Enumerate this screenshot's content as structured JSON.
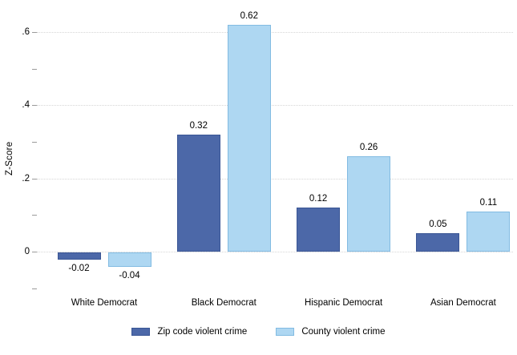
{
  "chart_data": {
    "type": "bar",
    "title": "",
    "xlabel": "",
    "ylabel": "Z-Score",
    "categories": [
      "White Democrat",
      "Black Democrat",
      "Hispanic Democrat",
      "Asian Democrat"
    ],
    "series": [
      {
        "name": "Zip code violent crime",
        "values": [
          -0.02,
          0.32,
          0.12,
          0.05
        ],
        "value_labels": [
          "-0.02",
          "0.32",
          "0.12",
          "0.05"
        ],
        "fill": "#4c68a8",
        "border": "#3a5695"
      },
      {
        "name": "County violent crime",
        "values": [
          -0.04,
          0.62,
          0.26,
          0.11
        ],
        "value_labels": [
          "-0.04",
          "0.62",
          "0.26",
          "0.11"
        ],
        "fill": "#aed7f2",
        "border": "#82bbe2"
      }
    ],
    "y_axis": {
      "major_ticks": [
        {
          "value": 0.0,
          "label": "0"
        },
        {
          "value": 0.2,
          "label": ".2"
        },
        {
          "value": 0.4,
          "label": ".4"
        },
        {
          "value": 0.6,
          "label": ".6"
        }
      ],
      "minor_ticks": [
        -0.1,
        0.1,
        0.3,
        0.5
      ],
      "range": [
        -0.1,
        0.66
      ],
      "grid": "dotted"
    },
    "legend": {
      "position": "bottom-center",
      "entries": [
        "Zip code violent crime",
        "County violent crime"
      ]
    },
    "styling": {
      "background": "#ffffff",
      "grid_color": "#d6d6d6",
      "tick_color": "#9a9a9a",
      "text_color": "#000000"
    }
  }
}
